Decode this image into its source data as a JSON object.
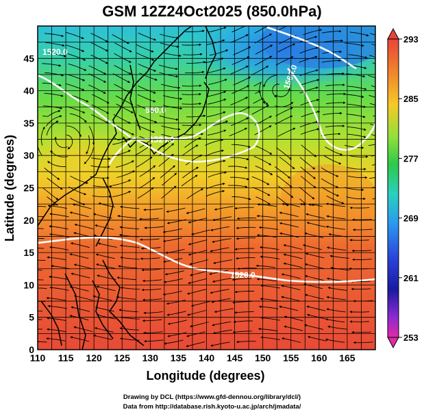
{
  "title": "GSM 12Z24Oct2025 (850.0hPa)",
  "x_axis": {
    "label": "Longitude (degrees)",
    "ticks": [
      "110",
      "115",
      "120",
      "125",
      "130",
      "135",
      "140",
      "145",
      "150",
      "155",
      "160",
      "165"
    ]
  },
  "y_axis": {
    "label": "Latitude  (degrees)",
    "ticks": [
      "0",
      "5",
      "10",
      "15",
      "20",
      "25",
      "30",
      "35",
      "40",
      "45"
    ]
  },
  "colorbar": {
    "ticks": [
      "293",
      "285",
      "277",
      "269",
      "261",
      "253"
    ],
    "colors": [
      "#e8443a",
      "#f08a2a",
      "#f7c828",
      "#8fe03a",
      "#2ec84a",
      "#2ad0c0",
      "#2a98f0",
      "#2a40d8",
      "#1a1aa0",
      "#8a2ad0",
      "#e02aa8"
    ]
  },
  "contour_labels": [
    "1520.0",
    "1560.0",
    "1520.0",
    "1520.0",
    "560.0"
  ],
  "footer": {
    "line1": "Drawing by DCL (https://www.gfd-dennou.org/library/dcl/)",
    "line2": "Data from http://database.rish.kyoto-u.ac.jp/arch/jmadata/"
  },
  "chart_data": {
    "type": "heatmap",
    "title": "GSM 12Z24Oct2025 (850.0hPa)",
    "xlabel": "Longitude (degrees)",
    "ylabel": "Latitude  (degrees)",
    "xlim": [
      110,
      170
    ],
    "ylim": [
      0,
      50
    ],
    "colorbar_range": [
      253,
      293
    ],
    "colorbar_ticks": [
      293,
      285,
      277,
      269,
      261,
      253
    ],
    "contour_labels": [
      "1520.0",
      "1560.0",
      "560.0"
    ],
    "grid": true,
    "overlays": [
      "streamlines",
      "coastlines",
      "geopotential height contours"
    ]
  }
}
